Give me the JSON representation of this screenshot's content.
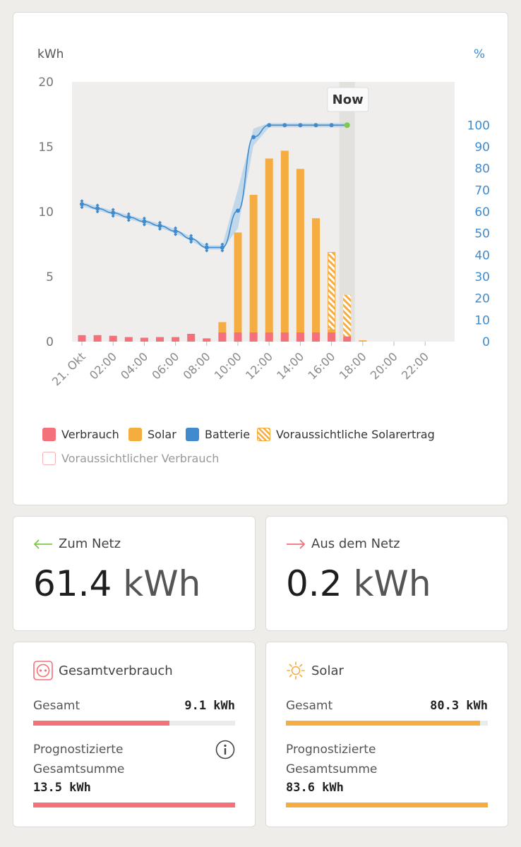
{
  "chart": {
    "y_left_unit": "kWh",
    "y_right_unit": "%",
    "now_label": "Now",
    "legend": {
      "consumption": "Verbrauch",
      "solar": "Solar",
      "battery": "Batterie",
      "forecast_solar": "Voraussichtliche Solarertrag",
      "forecast_consumption": "Voraussichtlicher Verbrauch"
    },
    "colors": {
      "consumption": "#f4707a",
      "solar": "#f5ac41",
      "battery": "#3f8bcd",
      "battery_band": "#b9d3ea",
      "now_dot": "#7ec84b",
      "plot_bg": "#f0eeec",
      "now_band": "#e3e1de"
    }
  },
  "chart_data": {
    "type": "bar",
    "x_labels": [
      "21. Okt",
      "02:00",
      "04:00",
      "06:00",
      "08:00",
      "10:00",
      "12:00",
      "14:00",
      "16:00",
      "18:00",
      "20:00",
      "22:00"
    ],
    "y_left_ticks": [
      "0",
      "5",
      "10",
      "15",
      "20"
    ],
    "y_right_ticks": [
      "0",
      "10",
      "20",
      "30",
      "40",
      "50",
      "60",
      "70",
      "80",
      "90",
      "100"
    ],
    "ylim_left": [
      0,
      20
    ],
    "ylim_right": [
      0,
      120
    ],
    "hours": [
      0,
      1,
      2,
      3,
      4,
      5,
      6,
      7,
      8,
      9,
      10,
      11,
      12,
      13,
      14,
      15,
      16,
      17,
      18,
      19,
      20,
      21,
      22,
      23
    ],
    "now_hour": 17,
    "series": [
      {
        "name": "Verbrauch",
        "type": "bar",
        "values": [
          0.5,
          0.5,
          0.45,
          0.35,
          0.3,
          0.35,
          0.35,
          0.6,
          0.25,
          0.7,
          0.7,
          0.7,
          0.7,
          0.7,
          0.7,
          0.7,
          0.7,
          0.4,
          0,
          0,
          0,
          0,
          0,
          0
        ]
      },
      {
        "name": "Solar",
        "type": "bar",
        "values": [
          0,
          0,
          0,
          0,
          0,
          0,
          0,
          0,
          0.2,
          1.5,
          8.4,
          11.3,
          14.1,
          14.7,
          13.3,
          9.5,
          6.9,
          3.6,
          0.1,
          0,
          0,
          0,
          0,
          0
        ]
      },
      {
        "name": "Voraussichtliche Solarertrag",
        "type": "bar",
        "values": [
          0,
          0,
          0,
          0,
          0,
          0,
          0,
          0,
          0,
          0,
          0,
          0,
          0,
          0,
          0,
          0,
          1.0,
          3.6,
          0,
          0,
          0,
          0,
          0,
          0
        ]
      },
      {
        "name": "Batterie",
        "type": "line",
        "axis": "right",
        "x": [
          0,
          1,
          2,
          3,
          4,
          5,
          6,
          7,
          8,
          9,
          10,
          11,
          12,
          13,
          14,
          15,
          16,
          17
        ],
        "values": [
          63.5,
          61.5,
          59.5,
          57.5,
          55.5,
          53.5,
          51,
          47.5,
          43.5,
          43.5,
          60.5,
          94.5,
          100,
          100,
          100,
          100,
          100,
          100
        ]
      }
    ]
  },
  "to_grid": {
    "label": "Zum Netz",
    "value": "61.4",
    "unit": "kWh"
  },
  "from_grid": {
    "label": "Aus dem Netz",
    "value": "0.2",
    "unit": "kWh"
  },
  "consumption": {
    "title": "Gesamtverbrauch",
    "total_label": "Gesamt",
    "total_value": "9.1 kWh",
    "total_fraction": 0.675,
    "forecast_label": "Prognostizierte Gesamtsumme",
    "forecast_value": "13.5 kWh",
    "color": "#f4707a"
  },
  "solar": {
    "title": "Solar",
    "total_label": "Gesamt",
    "total_value": "80.3 kWh",
    "total_fraction": 0.96,
    "forecast_label": "Prognostizierte Gesamtsumme",
    "forecast_value": "83.6 kWh",
    "color": "#f5ac41"
  }
}
